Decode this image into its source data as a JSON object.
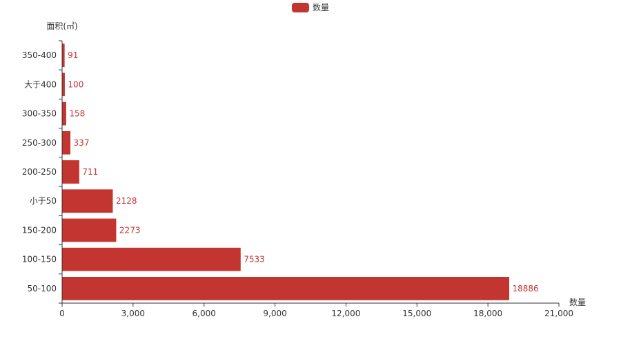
{
  "chart_data": {
    "type": "bar",
    "orientation": "horizontal",
    "categories": [
      "50-100",
      "100-150",
      "150-200",
      "小于50",
      "200-250",
      "250-300",
      "300-350",
      "大于400",
      "350-400"
    ],
    "series": [
      {
        "name": "数量",
        "values": [
          18886,
          7533,
          2273,
          2128,
          711,
          337,
          158,
          100,
          91
        ],
        "color": "#c23531"
      }
    ],
    "xlabel": "数量",
    "ylabel": "面积(㎡)",
    "xlim": [
      0,
      21000
    ],
    "xticks": [
      0,
      3000,
      6000,
      9000,
      12000,
      15000,
      18000,
      21000
    ],
    "xtick_labels": [
      "0",
      "3,000",
      "6,000",
      "9,000",
      "12,000",
      "15,000",
      "18,000",
      "21,000"
    ],
    "data_labels": true,
    "grid": false,
    "legend": {
      "position": "top-center",
      "entries": [
        "数量"
      ]
    }
  }
}
